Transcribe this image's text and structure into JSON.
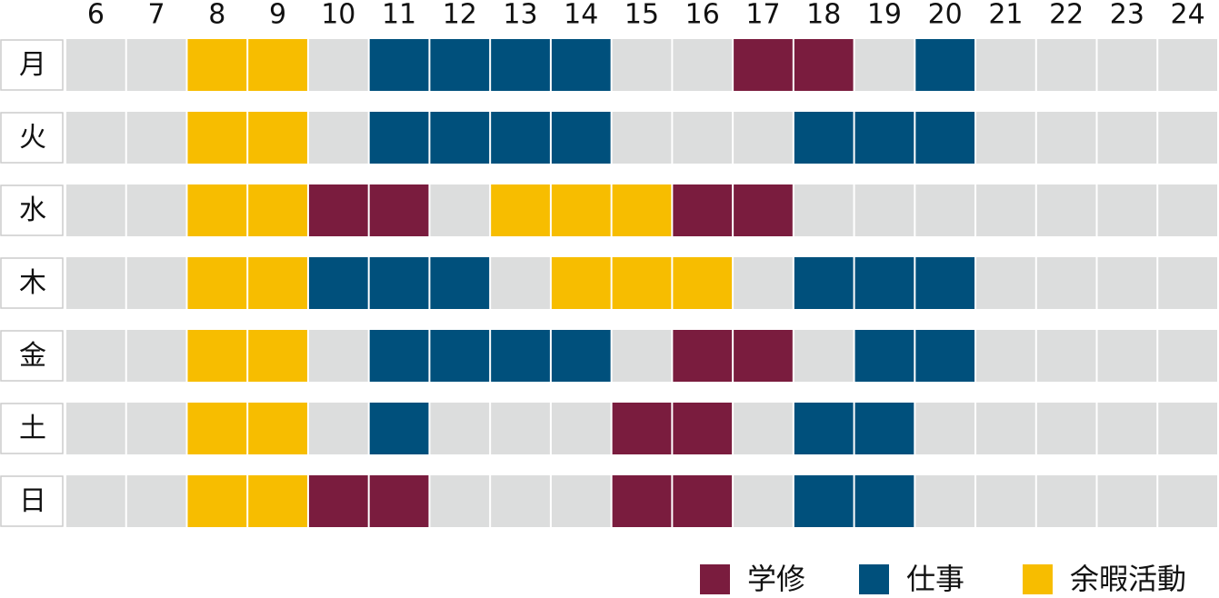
{
  "hours": [
    6,
    7,
    8,
    9,
    10,
    11,
    12,
    13,
    14,
    15,
    16,
    17,
    18,
    19,
    20,
    21,
    22,
    23,
    24
  ],
  "legend": [
    {
      "name": "学修",
      "color": "#7a1c3e"
    },
    {
      "name": "仕事",
      "color": "#00507c"
    },
    {
      "name": "余暇活動",
      "color": "#f7bd00"
    }
  ],
  "empty_color": "#dcdddd",
  "rows": [
    {
      "day": "月",
      "cells": [
        null,
        null,
        2,
        2,
        null,
        1,
        1,
        1,
        1,
        null,
        null,
        0,
        0,
        null,
        1,
        null,
        null,
        null,
        null
      ]
    },
    {
      "day": "火",
      "cells": [
        null,
        null,
        2,
        2,
        null,
        1,
        1,
        1,
        1,
        null,
        null,
        null,
        1,
        1,
        1,
        null,
        null,
        null,
        null
      ]
    },
    {
      "day": "水",
      "cells": [
        null,
        null,
        2,
        2,
        0,
        0,
        null,
        2,
        2,
        2,
        0,
        0,
        null,
        null,
        null,
        null,
        null,
        null,
        null
      ]
    },
    {
      "day": "木",
      "cells": [
        null,
        null,
        2,
        2,
        1,
        1,
        1,
        null,
        2,
        2,
        2,
        null,
        1,
        1,
        1,
        null,
        null,
        null,
        null
      ]
    },
    {
      "day": "金",
      "cells": [
        null,
        null,
        2,
        2,
        null,
        1,
        1,
        1,
        1,
        null,
        0,
        0,
        null,
        1,
        1,
        null,
        null,
        null,
        null
      ]
    },
    {
      "day": "土",
      "cells": [
        null,
        null,
        2,
        2,
        null,
        1,
        null,
        null,
        null,
        0,
        0,
        null,
        1,
        1,
        null,
        null,
        null,
        null,
        null
      ]
    },
    {
      "day": "日",
      "cells": [
        null,
        null,
        2,
        2,
        0,
        0,
        null,
        null,
        null,
        0,
        0,
        null,
        1,
        1,
        null,
        null,
        null,
        null,
        null
      ]
    }
  ]
}
